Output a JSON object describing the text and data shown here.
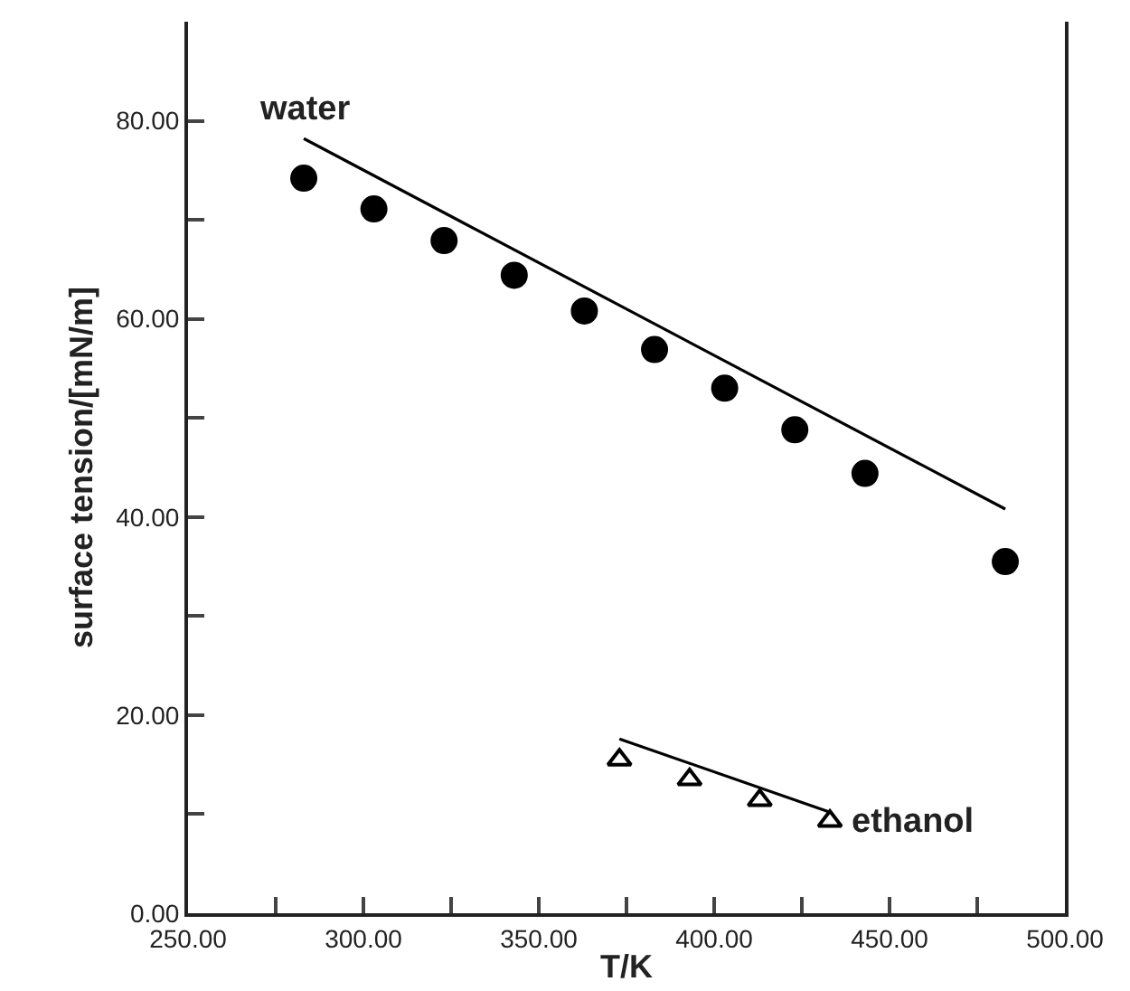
{
  "chart_data": {
    "type": "scatter",
    "xlabel": "T/K",
    "ylabel": "surface tension/[mN/m]",
    "xlim": [
      250,
      500
    ],
    "ylim": [
      0,
      90
    ],
    "xticks": [
      {
        "value": 250,
        "label": "250.00"
      },
      {
        "value": 275,
        "label": null
      },
      {
        "value": 300,
        "label": "300.00"
      },
      {
        "value": 325,
        "label": null
      },
      {
        "value": 350,
        "label": "350.00"
      },
      {
        "value": 375,
        "label": null
      },
      {
        "value": 400,
        "label": "400.00"
      },
      {
        "value": 425,
        "label": null
      },
      {
        "value": 450,
        "label": "450.00"
      },
      {
        "value": 475,
        "label": null
      },
      {
        "value": 500,
        "label": "500.00"
      }
    ],
    "yticks": [
      {
        "value": 0,
        "label": "0.00"
      },
      {
        "value": 10,
        "label": null
      },
      {
        "value": 20,
        "label": "20.00"
      },
      {
        "value": 30,
        "label": null
      },
      {
        "value": 40,
        "label": "40.00"
      },
      {
        "value": 50,
        "label": null
      },
      {
        "value": 60,
        "label": "60.00"
      },
      {
        "value": 70,
        "label": null
      },
      {
        "value": 80,
        "label": "80.00"
      }
    ],
    "grid": false,
    "series": [
      {
        "marker": "circle",
        "color": "#000000",
        "x": [
          283,
          303,
          323,
          343,
          363,
          383,
          403,
          423,
          443,
          483
        ],
        "values": [
          74.2,
          71.1,
          67.9,
          64.4,
          60.8,
          56.9,
          53.0,
          48.8,
          44.4,
          35.5
        ]
      },
      {
        "type": "line",
        "marker": "none",
        "line_style": "solid",
        "color": "#000000",
        "x": [
          283,
          483
        ],
        "values": [
          78.2,
          40.8
        ]
      },
      {
        "marker": "triangle",
        "color": "#000000",
        "x": [
          373,
          393,
          413,
          433
        ],
        "values": [
          15.5,
          13.5,
          11.4,
          9.3
        ]
      },
      {
        "type": "line",
        "marker": "none",
        "line_style": "solid",
        "color": "#000000",
        "x": [
          373,
          433
        ],
        "values": [
          17.6,
          10.2
        ]
      }
    ],
    "annotations": [
      {
        "text": "water",
        "x": 283,
        "y": 78.2
      },
      {
        "text": "ethanol",
        "x": 433,
        "y": 9.3
      }
    ]
  }
}
